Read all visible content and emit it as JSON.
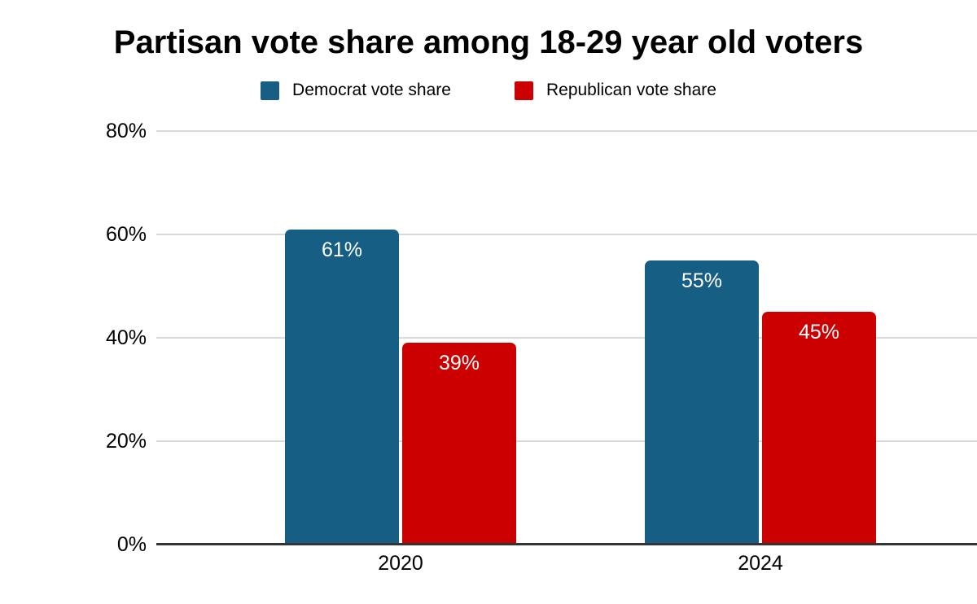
{
  "title": "Partisan vote share among 18-29 year old voters",
  "legend": {
    "items": [
      {
        "label": "Democrat vote share",
        "color": "#165E83"
      },
      {
        "label": "Republican vote share",
        "color": "#CC0000"
      }
    ]
  },
  "chart_data": {
    "type": "bar",
    "title": "Partisan vote share among 18-29 year old voters",
    "categories": [
      "2020",
      "2024"
    ],
    "series": [
      {
        "name": "Democrat vote share",
        "color": "#165E83",
        "values": [
          61,
          55
        ],
        "data_labels": [
          "61%",
          "55%"
        ]
      },
      {
        "name": "Republican vote share",
        "color": "#CC0000",
        "values": [
          39,
          45
        ],
        "data_labels": [
          "39%",
          "45%"
        ]
      }
    ],
    "xlabel": "",
    "ylabel": "",
    "ylim": [
      0,
      80
    ],
    "yticks": [
      {
        "value": 0,
        "label": "0%"
      },
      {
        "value": 20,
        "label": "20%"
      },
      {
        "value": 40,
        "label": "40%"
      },
      {
        "value": 60,
        "label": "60%"
      },
      {
        "value": 80,
        "label": "80%"
      }
    ],
    "grid": true,
    "legend_position": "top"
  },
  "style": {
    "background": "#FFFFFF",
    "grid_color": "#D9D9D9",
    "axis_color": "#333333",
    "tick_color": "#000000",
    "title_color": "#000000",
    "bar_label_color": "#FFFFFF"
  }
}
